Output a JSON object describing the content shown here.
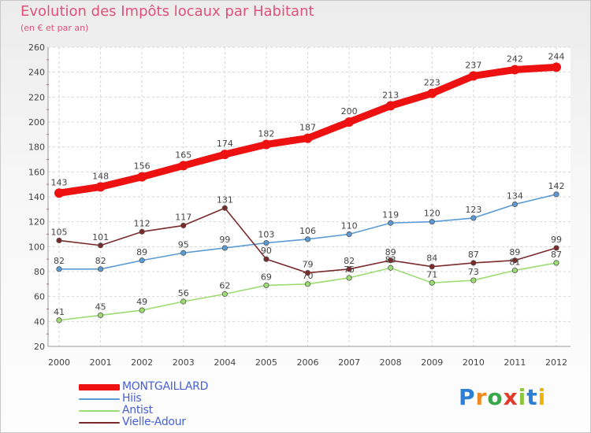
{
  "header": {
    "title": "Evolution des Impôts locaux par Habitant",
    "subtitle": "(en € et par an)"
  },
  "colors": {
    "title": "#e0507a",
    "legend_text": "#4560d8",
    "axis_text": "#444444"
  },
  "logo": {
    "letters": [
      "P",
      "r",
      "o",
      "x",
      "i",
      "t",
      "i"
    ],
    "colors": [
      "#2b7fd6",
      "#f08a20",
      "#3aa64a",
      "#e03a2a",
      "#8cc63f",
      "#2b7fd6",
      "#f0b400"
    ]
  },
  "chart_data": {
    "type": "line",
    "title": "Evolution des Impôts locaux par Habitant",
    "subtitle": "(en € et par an)",
    "xlabel": "",
    "ylabel": "",
    "x": [
      2000,
      2001,
      2002,
      2003,
      2004,
      2005,
      2006,
      2007,
      2008,
      2009,
      2010,
      2011,
      2012
    ],
    "x_labels": [
      "2000",
      "2001",
      "2002",
      "2003",
      "2004",
      "2005",
      "2006",
      "2007",
      "2008",
      "2009",
      "2010",
      "2011",
      "2012"
    ],
    "ylim": [
      20,
      260
    ],
    "yticks": [
      20,
      40,
      60,
      80,
      100,
      120,
      140,
      160,
      180,
      200,
      220,
      240,
      260
    ],
    "grid": true,
    "legend_position": "bottom-left",
    "series": [
      {
        "name": "MONTGAILLARD",
        "color": "#ee1111",
        "width": "thick",
        "values": [
          143,
          148,
          156,
          165,
          174,
          182,
          187,
          200,
          213,
          223,
          237,
          242,
          244
        ]
      },
      {
        "name": "Hiis",
        "color": "#5b9bd5",
        "width": "thin",
        "values": [
          82,
          82,
          89,
          95,
          99,
          103,
          106,
          110,
          119,
          120,
          123,
          134,
          142
        ]
      },
      {
        "name": "Antist",
        "color": "#9ddc72",
        "width": "thin",
        "values": [
          41,
          45,
          49,
          56,
          62,
          69,
          70,
          75,
          83,
          71,
          73,
          81,
          87
        ]
      },
      {
        "name": "Vielle-Adour",
        "color": "#7a2a2a",
        "width": "thin",
        "values": [
          105,
          101,
          112,
          117,
          131,
          90,
          79,
          82,
          89,
          84,
          87,
          89,
          99
        ]
      }
    ]
  }
}
